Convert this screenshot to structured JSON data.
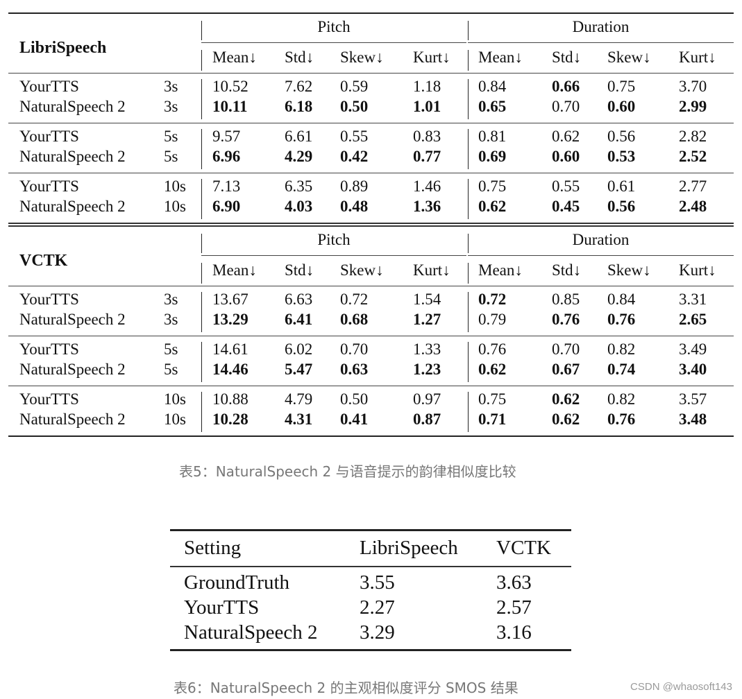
{
  "table5": {
    "caption": "表5：NaturalSpeech 2 与语音提示的韵律相似度比较",
    "groups": [
      "Pitch",
      "Duration"
    ],
    "metrics": [
      "Mean↓",
      "Std↓",
      "Skew↓",
      "Kurt↓",
      "Mean↓",
      "Std↓",
      "Skew↓",
      "Kurt↓"
    ],
    "sections": [
      {
        "dataset": "LibriSpeech",
        "blocks": [
          {
            "prompt": "3s",
            "rows": [
              {
                "model": "YourTTS",
                "values": [
                  "10.52",
                  "7.62",
                  "0.59",
                  "1.18",
                  "0.84",
                  "0.66",
                  "0.75",
                  "3.70"
                ],
                "bold": [
                  false,
                  false,
                  false,
                  false,
                  false,
                  true,
                  false,
                  false
                ]
              },
              {
                "model": "NaturalSpeech 2",
                "values": [
                  "10.11",
                  "6.18",
                  "0.50",
                  "1.01",
                  "0.65",
                  "0.70",
                  "0.60",
                  "2.99"
                ],
                "bold": [
                  true,
                  true,
                  true,
                  true,
                  true,
                  false,
                  true,
                  true
                ]
              }
            ]
          },
          {
            "prompt": "5s",
            "rows": [
              {
                "model": "YourTTS",
                "values": [
                  "9.57",
                  "6.61",
                  "0.55",
                  "0.83",
                  "0.81",
                  "0.62",
                  "0.56",
                  "2.82"
                ],
                "bold": [
                  false,
                  false,
                  false,
                  false,
                  false,
                  false,
                  false,
                  false
                ]
              },
              {
                "model": "NaturalSpeech 2",
                "values": [
                  "6.96",
                  "4.29",
                  "0.42",
                  "0.77",
                  "0.69",
                  "0.60",
                  "0.53",
                  "2.52"
                ],
                "bold": [
                  true,
                  true,
                  true,
                  true,
                  true,
                  true,
                  true,
                  true
                ]
              }
            ]
          },
          {
            "prompt": "10s",
            "rows": [
              {
                "model": "YourTTS",
                "values": [
                  "7.13",
                  "6.35",
                  "0.89",
                  "1.46",
                  "0.75",
                  "0.55",
                  "0.61",
                  "2.77"
                ],
                "bold": [
                  false,
                  false,
                  false,
                  false,
                  false,
                  false,
                  false,
                  false
                ]
              },
              {
                "model": "NaturalSpeech 2",
                "values": [
                  "6.90",
                  "4.03",
                  "0.48",
                  "1.36",
                  "0.62",
                  "0.45",
                  "0.56",
                  "2.48"
                ],
                "bold": [
                  true,
                  true,
                  true,
                  true,
                  true,
                  true,
                  true,
                  true
                ]
              }
            ]
          }
        ]
      },
      {
        "dataset": "VCTK",
        "blocks": [
          {
            "prompt": "3s",
            "rows": [
              {
                "model": "YourTTS",
                "values": [
                  "13.67",
                  "6.63",
                  "0.72",
                  "1.54",
                  "0.72",
                  "0.85",
                  "0.84",
                  "3.31"
                ],
                "bold": [
                  false,
                  false,
                  false,
                  false,
                  true,
                  false,
                  false,
                  false
                ]
              },
              {
                "model": "NaturalSpeech 2",
                "values": [
                  "13.29",
                  "6.41",
                  "0.68",
                  "1.27",
                  "0.79",
                  "0.76",
                  "0.76",
                  "2.65"
                ],
                "bold": [
                  true,
                  true,
                  true,
                  true,
                  false,
                  true,
                  true,
                  true
                ]
              }
            ]
          },
          {
            "prompt": "5s",
            "rows": [
              {
                "model": "YourTTS",
                "values": [
                  "14.61",
                  "6.02",
                  "0.70",
                  "1.33",
                  "0.76",
                  "0.70",
                  "0.82",
                  "3.49"
                ],
                "bold": [
                  false,
                  false,
                  false,
                  false,
                  false,
                  false,
                  false,
                  false
                ]
              },
              {
                "model": "NaturalSpeech 2",
                "values": [
                  "14.46",
                  "5.47",
                  "0.63",
                  "1.23",
                  "0.62",
                  "0.67",
                  "0.74",
                  "3.40"
                ],
                "bold": [
                  true,
                  true,
                  true,
                  true,
                  true,
                  true,
                  true,
                  true
                ]
              }
            ]
          },
          {
            "prompt": "10s",
            "rows": [
              {
                "model": "YourTTS",
                "values": [
                  "10.88",
                  "4.79",
                  "0.50",
                  "0.97",
                  "0.75",
                  "0.62",
                  "0.82",
                  "3.57"
                ],
                "bold": [
                  false,
                  false,
                  false,
                  false,
                  false,
                  true,
                  false,
                  false
                ]
              },
              {
                "model": "NaturalSpeech 2",
                "values": [
                  "10.28",
                  "4.31",
                  "0.41",
                  "0.87",
                  "0.71",
                  "0.62",
                  "0.76",
                  "3.48"
                ],
                "bold": [
                  true,
                  true,
                  true,
                  true,
                  true,
                  true,
                  true,
                  true
                ]
              }
            ]
          }
        ]
      }
    ]
  },
  "table6": {
    "caption": "表6：NaturalSpeech 2 的主观相似度评分 SMOS 结果",
    "headers": [
      "Setting",
      "LibriSpeech",
      "VCTK"
    ],
    "rows": [
      {
        "setting": "GroundTruth",
        "librispeech": "3.55",
        "vctk": "3.63"
      },
      {
        "setting": "YourTTS",
        "librispeech": "2.27",
        "vctk": "2.57"
      },
      {
        "setting": "NaturalSpeech 2",
        "librispeech": "3.29",
        "vctk": "3.16"
      }
    ]
  },
  "watermark": "CSDN @whaosoft143"
}
